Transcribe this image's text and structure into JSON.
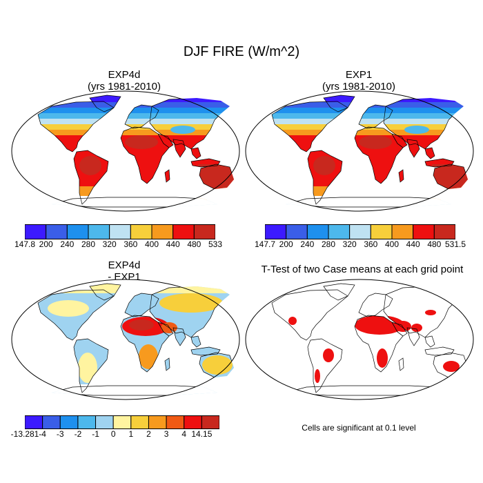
{
  "figure": {
    "title": "DJF FIRE (W/m^2)"
  },
  "panels": [
    {
      "title_line1": "EXP4d",
      "title_line2": "(yrs 1981-2010)"
    },
    {
      "title_line1": "EXP1",
      "title_line2": "(yrs 1981-2010)"
    },
    {
      "title_line1": "EXP4d",
      "title_line2": "- EXP1"
    },
    {
      "title_line1": "T-Test of two Case means at each grid point",
      "title_line2": ""
    }
  ],
  "colorbars": [
    {
      "colors": [
        "#3c1aff",
        "#3a5ee8",
        "#1e90ee",
        "#4db8ec",
        "#bfe2f2",
        "#f7cf3b",
        "#f79a1e",
        "#ee1010",
        "#c8281e"
      ],
      "labels": [
        "147.8",
        "200",
        "240",
        "280",
        "320",
        "360",
        "400",
        "440",
        "480",
        "533"
      ]
    },
    {
      "colors": [
        "#3c1aff",
        "#3a5ee8",
        "#1e90ee",
        "#4db8ec",
        "#bfe2f2",
        "#f7cf3b",
        "#f79a1e",
        "#ee1010",
        "#c8281e"
      ],
      "labels": [
        "147.7",
        "200",
        "240",
        "280",
        "320",
        "360",
        "400",
        "440",
        "480",
        "531.5"
      ]
    },
    {
      "colors": [
        "#3c1aff",
        "#3a5ee8",
        "#1e90ee",
        "#4db8ec",
        "#9fd3f0",
        "#fff4a0",
        "#f7cf3b",
        "#f79a1e",
        "#f05a14",
        "#ee1010",
        "#c8281e"
      ],
      "labels": [
        "-13.281",
        "-4",
        "-3",
        "-2",
        "-1",
        "0",
        "1",
        "2",
        "3",
        "4",
        "14.15"
      ]
    }
  ],
  "significance_note": "Cells are significant at 0.1 level",
  "palette": {
    "cold_deep": "#3c1aff",
    "cold": "#3a5ee8",
    "cool": "#1e90ee",
    "mild": "#4db8ec",
    "pale": "#bfe2f2",
    "warm": "#f7cf3b",
    "orange": "#f79a1e",
    "hot": "#ee1010",
    "hottest": "#c8281e",
    "sig_red": "#ee1010",
    "ocean": "#ffffff",
    "coast": "#000000"
  }
}
